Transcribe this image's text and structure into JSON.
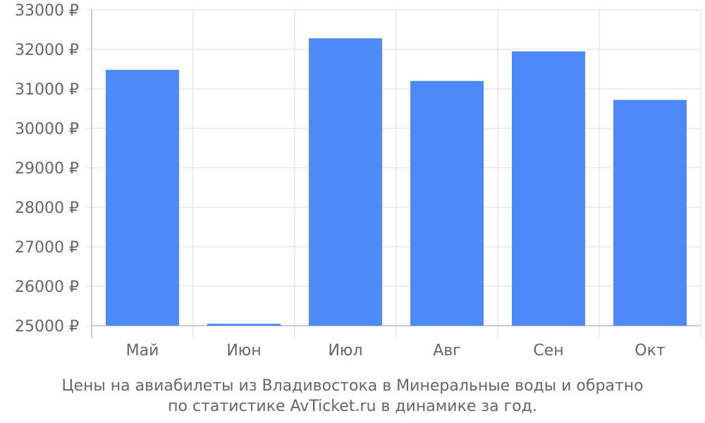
{
  "chart_data": {
    "type": "bar",
    "categories": [
      "Май",
      "Июн",
      "Июл",
      "Авг",
      "Сен",
      "Окт"
    ],
    "values": [
      31480,
      25050,
      32280,
      31200,
      31950,
      30720
    ],
    "currency_suffix": " ₽",
    "ylim": [
      25000,
      33000
    ],
    "ytick_step": 1000,
    "grid": true,
    "bar_color": "#4d89f9",
    "grid_color": "#dddddd",
    "axis_color": "#bbbbbb",
    "label_color": "#666666"
  },
  "caption": {
    "line1": "Цены на авиабилеты из Владивостока в Минеральные воды и обратно",
    "line2": "по статистике AvTicket.ru в динамике за год."
  }
}
